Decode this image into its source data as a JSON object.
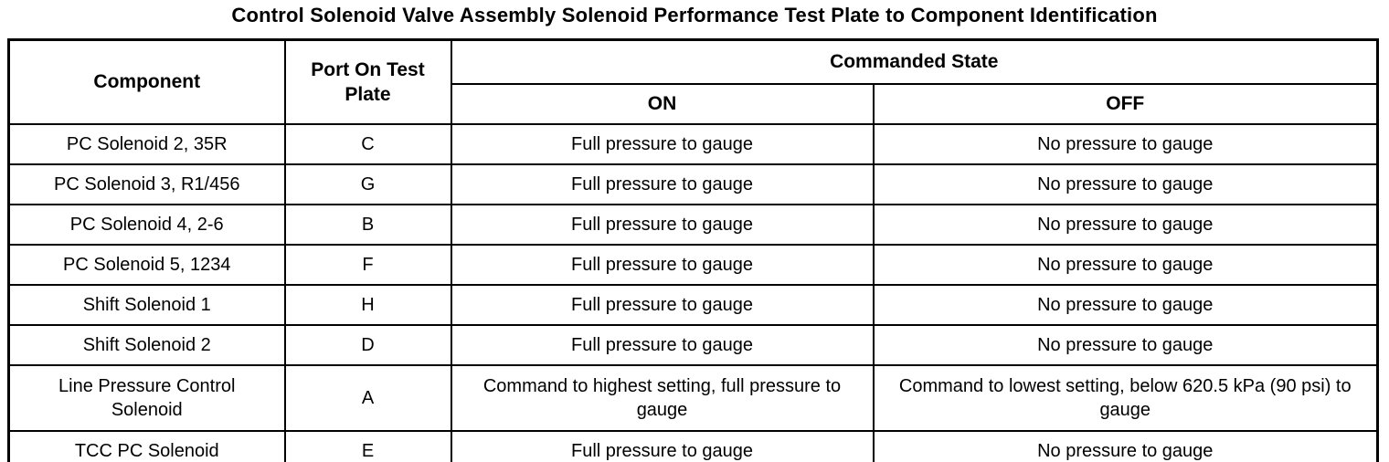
{
  "title": "Control Solenoid Valve Assembly Solenoid Performance Test Plate to Component Identification",
  "colors": {
    "background": "#ffffff",
    "border": "#000000",
    "text": "#000000"
  },
  "table": {
    "headers": {
      "component": "Component",
      "port": "Port On Test Plate",
      "commanded_state": "Commanded State",
      "on": "ON",
      "off": "OFF"
    },
    "rows": [
      {
        "component": "PC Solenoid 2, 35R",
        "port": "C",
        "on": "Full pressure to gauge",
        "off": "No pressure to gauge"
      },
      {
        "component": "PC Solenoid 3, R1/456",
        "port": "G",
        "on": "Full pressure to gauge",
        "off": "No pressure to gauge"
      },
      {
        "component": "PC Solenoid 4, 2-6",
        "port": "B",
        "on": "Full pressure to gauge",
        "off": "No pressure to gauge"
      },
      {
        "component": "PC Solenoid 5, 1234",
        "port": "F",
        "on": "Full pressure to gauge",
        "off": "No pressure to gauge"
      },
      {
        "component": "Shift Solenoid 1",
        "port": "H",
        "on": "Full pressure to gauge",
        "off": "No pressure to gauge"
      },
      {
        "component": "Shift Solenoid 2",
        "port": "D",
        "on": "Full pressure to gauge",
        "off": "No pressure to gauge"
      },
      {
        "component": "Line Pressure Control Solenoid",
        "port": "A",
        "on": "Command to highest setting, full pressure to gauge",
        "off": "Command to lowest setting, below 620.5 kPa (90 psi) to gauge"
      },
      {
        "component": "TCC PC Solenoid",
        "port": "E",
        "on": "Full pressure to gauge",
        "off": "No pressure to gauge"
      }
    ]
  }
}
